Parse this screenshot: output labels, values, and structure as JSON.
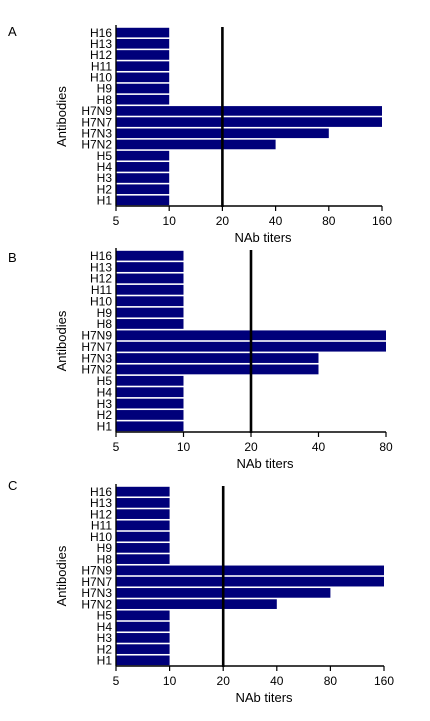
{
  "chart_data": [
    {
      "type": "bar",
      "orientation": "horizontal",
      "panel_label": "A",
      "categories": [
        "H1",
        "H2",
        "H3",
        "H4",
        "H5",
        "H7N2",
        "H7N3",
        "H7N7",
        "H7N9",
        "H8",
        "H9",
        "H10",
        "H11",
        "H12",
        "H13",
        "H16"
      ],
      "values": [
        10,
        10,
        10,
        10,
        10,
        40,
        80,
        160,
        160,
        10,
        10,
        10,
        10,
        10,
        10,
        10
      ],
      "xlabel": "NAb titers",
      "ylabel": "Antibodies",
      "xscale": "log2",
      "xlim": [
        5,
        160
      ],
      "xticks": [
        5,
        10,
        20,
        40,
        80,
        160
      ],
      "xtick_labels": [
        "5",
        "10",
        "20",
        "40",
        "80",
        "160"
      ],
      "reference_line": 20,
      "bar_color": "#00007a",
      "grid": false
    },
    {
      "type": "bar",
      "orientation": "horizontal",
      "panel_label": "B",
      "categories": [
        "H1",
        "H2",
        "H3",
        "H4",
        "H5",
        "H7N2",
        "H7N3",
        "H7N7",
        "H7N9",
        "H8",
        "H9",
        "H10",
        "H11",
        "H12",
        "H13",
        "H16"
      ],
      "values": [
        10,
        10,
        10,
        10,
        10,
        40,
        40,
        80,
        80,
        10,
        10,
        10,
        10,
        10,
        10,
        10
      ],
      "xlabel": "NAb titers",
      "ylabel": "Antibodies",
      "xscale": "log2",
      "xlim": [
        5,
        80
      ],
      "xticks": [
        5,
        10,
        20,
        40,
        80
      ],
      "xtick_labels": [
        "5",
        "10",
        "20",
        "40",
        "80"
      ],
      "reference_line": 20,
      "bar_color": "#00007a",
      "grid": false
    },
    {
      "type": "bar",
      "orientation": "horizontal",
      "panel_label": "C",
      "categories": [
        "H1",
        "H2",
        "H3",
        "H4",
        "H5",
        "H7N2",
        "H7N3",
        "H7N7",
        "H7N9",
        "H8",
        "H9",
        "H10",
        "H11",
        "H12",
        "H13",
        "H16"
      ],
      "values": [
        10,
        10,
        10,
        10,
        10,
        40,
        80,
        160,
        160,
        10,
        10,
        10,
        10,
        10,
        10,
        10
      ],
      "xlabel": "NAb titers",
      "ylabel": "Antibodies",
      "xscale": "log2",
      "xlim": [
        5,
        160
      ],
      "xticks": [
        5,
        10,
        20,
        40,
        80,
        160
      ],
      "xtick_labels": [
        "5",
        "10",
        "20",
        "40",
        "80",
        "160"
      ],
      "reference_line": 20,
      "bar_color": "#00007a",
      "grid": false
    }
  ]
}
